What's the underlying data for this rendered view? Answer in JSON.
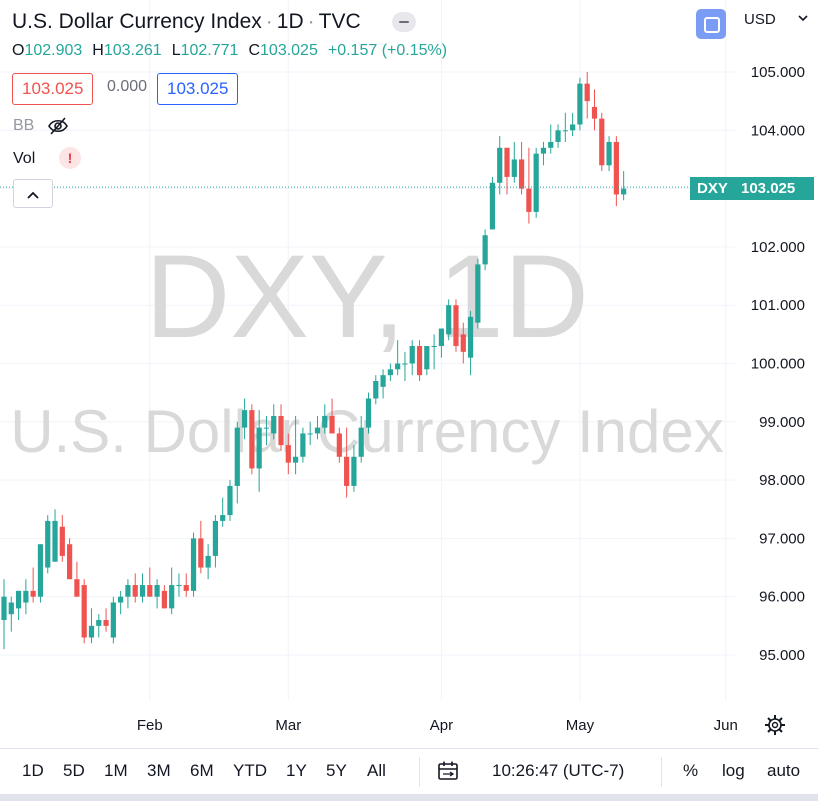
{
  "header": {
    "title": "U.S. Dollar Currency Index",
    "interval": "1D",
    "exchange": "TVC",
    "currency": "USD"
  },
  "ohlc": {
    "o_label": "O",
    "o": "102.903",
    "h_label": "H",
    "h": "103.261",
    "l_label": "L",
    "l": "102.771",
    "c_label": "C",
    "c": "103.025",
    "change": "+0.157 (+0.15%)"
  },
  "price_boxes": {
    "bid": "103.025",
    "spread": "0.000",
    "ask": "103.025"
  },
  "indicators": {
    "bb": "BB",
    "vol": "Vol",
    "vol_warning": "!",
    "collapse": "^"
  },
  "watermark": {
    "symbol_line": "DXY, 1D",
    "name_line": "U.S. Dollar Currency Index"
  },
  "last_price_tag": {
    "symbol": "DXY",
    "price": "103.025"
  },
  "bottom_bar": {
    "ranges": [
      "1D",
      "5D",
      "1M",
      "3M",
      "6M",
      "YTD",
      "1Y",
      "5Y",
      "All"
    ],
    "clock": "10:26:47 (UTC-7)",
    "percent": "%",
    "log": "log",
    "auto": "auto"
  },
  "colors": {
    "up": "#26a69a",
    "down": "#ef5350",
    "last_price": "#26a69a",
    "grid": "#f0f3fa",
    "watermark": "#d9d9d9"
  },
  "icons": [
    "eye-crossed-icon",
    "warning-icon",
    "chevron-up-icon",
    "compare-icon",
    "chevron-down-icon",
    "calendar-range-icon",
    "gear-icon"
  ],
  "chart_data": {
    "type": "candlestick",
    "title": "U.S. Dollar Currency Index · 1D · TVC",
    "symbol": "DXY",
    "ylim": [
      94.3,
      105.35
    ],
    "y_ticks": [
      "95.000",
      "96.000",
      "97.000",
      "98.000",
      "99.000",
      "100.000",
      "101.000",
      "102.000",
      "103.000",
      "104.000",
      "105.000"
    ],
    "x_ticks": [
      "Feb",
      "Mar",
      "Apr",
      "May",
      "Jun"
    ],
    "x_tick_index": [
      20.0,
      39.0,
      60.0,
      79.0,
      99.0
    ],
    "grid": true,
    "last_price": 103.025,
    "candles": [
      {
        "o": 95.6,
        "h": 96.3,
        "l": 95.1,
        "c": 96.0
      },
      {
        "o": 95.7,
        "h": 96.0,
        "l": 95.4,
        "c": 95.9
      },
      {
        "o": 95.8,
        "h": 96.1,
        "l": 95.6,
        "c": 96.1
      },
      {
        "o": 95.9,
        "h": 96.3,
        "l": 95.7,
        "c": 96.1
      },
      {
        "o": 96.1,
        "h": 96.5,
        "l": 95.9,
        "c": 96.0
      },
      {
        "o": 96.0,
        "h": 96.9,
        "l": 95.9,
        "c": 96.9
      },
      {
        "o": 96.5,
        "h": 97.4,
        "l": 96.4,
        "c": 97.3
      },
      {
        "o": 96.6,
        "h": 97.5,
        "l": 96.6,
        "c": 97.3
      },
      {
        "o": 97.2,
        "h": 97.4,
        "l": 96.6,
        "c": 96.7
      },
      {
        "o": 96.9,
        "h": 97.0,
        "l": 96.3,
        "c": 96.3
      },
      {
        "o": 96.3,
        "h": 96.6,
        "l": 96.0,
        "c": 96.0
      },
      {
        "o": 96.2,
        "h": 96.3,
        "l": 95.2,
        "c": 95.3
      },
      {
        "o": 95.3,
        "h": 95.8,
        "l": 95.2,
        "c": 95.5
      },
      {
        "o": 95.5,
        "h": 95.7,
        "l": 95.3,
        "c": 95.6
      },
      {
        "o": 95.6,
        "h": 95.8,
        "l": 95.4,
        "c": 95.5
      },
      {
        "o": 95.3,
        "h": 96.0,
        "l": 95.2,
        "c": 95.9
      },
      {
        "o": 95.9,
        "h": 96.1,
        "l": 95.7,
        "c": 96.0
      },
      {
        "o": 96.0,
        "h": 96.3,
        "l": 95.8,
        "c": 96.2
      },
      {
        "o": 96.2,
        "h": 96.4,
        "l": 95.9,
        "c": 96.0
      },
      {
        "o": 96.0,
        "h": 96.4,
        "l": 95.9,
        "c": 96.2
      },
      {
        "o": 96.2,
        "h": 96.5,
        "l": 96.0,
        "c": 96.0
      },
      {
        "o": 96.0,
        "h": 96.3,
        "l": 95.8,
        "c": 96.2
      },
      {
        "o": 96.1,
        "h": 96.2,
        "l": 95.8,
        "c": 95.8
      },
      {
        "o": 95.8,
        "h": 96.5,
        "l": 95.7,
        "c": 96.2
      },
      {
        "o": 96.2,
        "h": 96.4,
        "l": 96.0,
        "c": 96.2
      },
      {
        "o": 96.2,
        "h": 96.4,
        "l": 96.0,
        "c": 96.1
      },
      {
        "o": 96.1,
        "h": 97.1,
        "l": 96.0,
        "c": 97.0
      },
      {
        "o": 97.0,
        "h": 97.3,
        "l": 96.4,
        "c": 96.5
      },
      {
        "o": 96.5,
        "h": 96.9,
        "l": 96.3,
        "c": 96.7
      },
      {
        "o": 96.7,
        "h": 97.4,
        "l": 96.5,
        "c": 97.3
      },
      {
        "o": 97.3,
        "h": 97.7,
        "l": 97.2,
        "c": 97.4
      },
      {
        "o": 97.4,
        "h": 98.0,
        "l": 97.3,
        "c": 97.9
      },
      {
        "o": 97.9,
        "h": 99.0,
        "l": 97.6,
        "c": 98.9
      },
      {
        "o": 98.9,
        "h": 99.4,
        "l": 98.7,
        "c": 99.2
      },
      {
        "o": 99.2,
        "h": 99.3,
        "l": 98.1,
        "c": 98.2
      },
      {
        "o": 98.2,
        "h": 99.2,
        "l": 97.8,
        "c": 98.9
      },
      {
        "o": 98.9,
        "h": 99.1,
        "l": 98.6,
        "c": 98.9
      },
      {
        "o": 98.8,
        "h": 99.3,
        "l": 98.7,
        "c": 99.1
      },
      {
        "o": 99.1,
        "h": 99.3,
        "l": 98.5,
        "c": 98.6
      },
      {
        "o": 98.6,
        "h": 98.8,
        "l": 98.1,
        "c": 98.3
      },
      {
        "o": 98.3,
        "h": 99.1,
        "l": 98.1,
        "c": 98.4
      },
      {
        "o": 98.4,
        "h": 98.9,
        "l": 98.3,
        "c": 98.8
      },
      {
        "o": 98.8,
        "h": 99.0,
        "l": 98.6,
        "c": 98.8
      },
      {
        "o": 98.8,
        "h": 99.1,
        "l": 98.7,
        "c": 98.9
      },
      {
        "o": 98.9,
        "h": 99.3,
        "l": 98.8,
        "c": 99.1
      },
      {
        "o": 99.1,
        "h": 99.4,
        "l": 98.8,
        "c": 98.8
      },
      {
        "o": 98.8,
        "h": 98.9,
        "l": 98.3,
        "c": 98.4
      },
      {
        "o": 98.4,
        "h": 98.9,
        "l": 97.7,
        "c": 97.9
      },
      {
        "o": 97.9,
        "h": 98.6,
        "l": 97.8,
        "c": 98.4
      },
      {
        "o": 98.4,
        "h": 99.1,
        "l": 98.3,
        "c": 98.9
      },
      {
        "o": 98.9,
        "h": 99.5,
        "l": 98.8,
        "c": 99.4
      },
      {
        "o": 99.4,
        "h": 99.8,
        "l": 99.3,
        "c": 99.7
      },
      {
        "o": 99.6,
        "h": 99.9,
        "l": 99.4,
        "c": 99.8
      },
      {
        "o": 99.8,
        "h": 100.0,
        "l": 99.7,
        "c": 99.9
      },
      {
        "o": 99.9,
        "h": 100.4,
        "l": 99.8,
        "c": 100.0
      },
      {
        "o": 100.0,
        "h": 100.2,
        "l": 99.7,
        "c": 100.0
      },
      {
        "o": 100.0,
        "h": 100.4,
        "l": 99.8,
        "c": 100.3
      },
      {
        "o": 100.3,
        "h": 100.4,
        "l": 99.7,
        "c": 99.8
      },
      {
        "o": 99.9,
        "h": 100.3,
        "l": 99.8,
        "c": 100.3
      },
      {
        "o": 100.3,
        "h": 100.5,
        "l": 99.9,
        "c": 100.3
      },
      {
        "o": 100.3,
        "h": 100.6,
        "l": 100.1,
        "c": 100.6
      },
      {
        "o": 100.5,
        "h": 101.1,
        "l": 100.4,
        "c": 101.0
      },
      {
        "o": 101.0,
        "h": 101.1,
        "l": 100.2,
        "c": 100.3
      },
      {
        "o": 100.5,
        "h": 100.7,
        "l": 100.0,
        "c": 100.2
      },
      {
        "o": 100.1,
        "h": 100.9,
        "l": 99.8,
        "c": 100.8
      },
      {
        "o": 100.7,
        "h": 101.8,
        "l": 100.6,
        "c": 101.7
      },
      {
        "o": 101.7,
        "h": 102.3,
        "l": 101.6,
        "c": 102.2
      },
      {
        "o": 102.3,
        "h": 103.2,
        "l": 102.3,
        "c": 103.1
      },
      {
        "o": 103.1,
        "h": 103.9,
        "l": 102.9,
        "c": 103.7
      },
      {
        "o": 103.7,
        "h": 103.7,
        "l": 102.9,
        "c": 103.2
      },
      {
        "o": 103.2,
        "h": 103.8,
        "l": 103.1,
        "c": 103.5
      },
      {
        "o": 103.5,
        "h": 103.8,
        "l": 102.9,
        "c": 103.0
      },
      {
        "o": 103.0,
        "h": 103.7,
        "l": 102.4,
        "c": 102.6
      },
      {
        "o": 102.6,
        "h": 103.7,
        "l": 102.5,
        "c": 103.6
      },
      {
        "o": 103.6,
        "h": 103.8,
        "l": 103.4,
        "c": 103.7
      },
      {
        "o": 103.7,
        "h": 104.1,
        "l": 103.6,
        "c": 103.8
      },
      {
        "o": 103.8,
        "h": 104.1,
        "l": 103.7,
        "c": 104.0
      },
      {
        "o": 104.0,
        "h": 104.3,
        "l": 103.8,
        "c": 104.0
      },
      {
        "o": 104.0,
        "h": 104.3,
        "l": 103.9,
        "c": 104.1
      },
      {
        "o": 104.1,
        "h": 104.9,
        "l": 104.0,
        "c": 104.8
      },
      {
        "o": 104.8,
        "h": 105.0,
        "l": 104.2,
        "c": 104.5
      },
      {
        "o": 104.4,
        "h": 104.7,
        "l": 104.0,
        "c": 104.2
      },
      {
        "o": 104.2,
        "h": 104.3,
        "l": 103.3,
        "c": 103.4
      },
      {
        "o": 103.4,
        "h": 103.9,
        "l": 103.3,
        "c": 103.8
      },
      {
        "o": 103.8,
        "h": 103.9,
        "l": 102.7,
        "c": 102.9
      },
      {
        "o": 102.9,
        "h": 103.3,
        "l": 102.8,
        "c": 103.0
      }
    ]
  }
}
